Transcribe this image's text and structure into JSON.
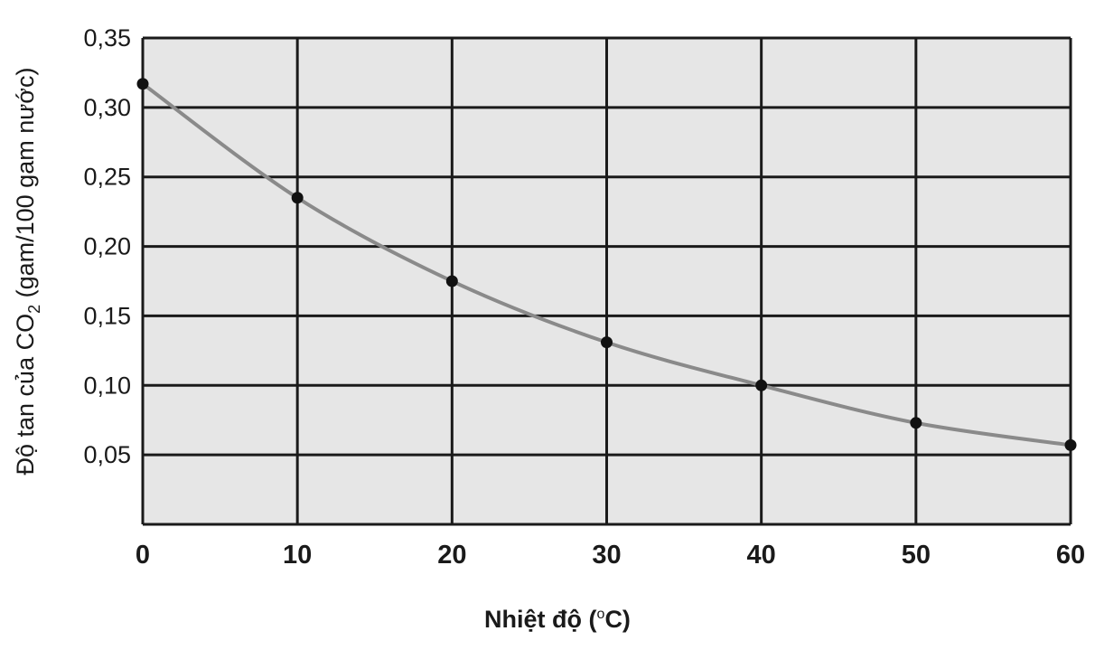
{
  "chart_data": {
    "type": "line",
    "xlabel": {
      "prefix": "Nhiệt độ (",
      "degree": "o",
      "unit": "C)"
    },
    "ylabel": {
      "prefix": "Độ tan của CO",
      "subscript": "2",
      "suffix": " (gam/100 gam nước)"
    },
    "xlim": [
      0,
      60
    ],
    "ylim": [
      0,
      0.35
    ],
    "x_ticks": [
      {
        "value": 0,
        "label": "0"
      },
      {
        "value": 10,
        "label": "10"
      },
      {
        "value": 20,
        "label": "20"
      },
      {
        "value": 30,
        "label": "30"
      },
      {
        "value": 40,
        "label": "40"
      },
      {
        "value": 50,
        "label": "50"
      },
      {
        "value": 60,
        "label": "60"
      }
    ],
    "y_ticks": [
      {
        "value": 0.05,
        "label": "0,05"
      },
      {
        "value": 0.1,
        "label": "0,10"
      },
      {
        "value": 0.15,
        "label": "0,15"
      },
      {
        "value": 0.2,
        "label": "0,20"
      },
      {
        "value": 0.25,
        "label": "0,25"
      },
      {
        "value": 0.3,
        "label": "0,30"
      },
      {
        "value": 0.35,
        "label": "0,35"
      }
    ],
    "grid": true,
    "series": [
      {
        "x": [
          0,
          10,
          20,
          30,
          40,
          50,
          60
        ],
        "y": [
          0.317,
          0.235,
          0.175,
          0.131,
          0.1,
          0.073,
          0.057
        ]
      }
    ],
    "colors": {
      "plot_background": "#e6e6e6",
      "grid": "#1a1a1a",
      "curve": "#8a8a8a",
      "points": "#111111"
    }
  }
}
